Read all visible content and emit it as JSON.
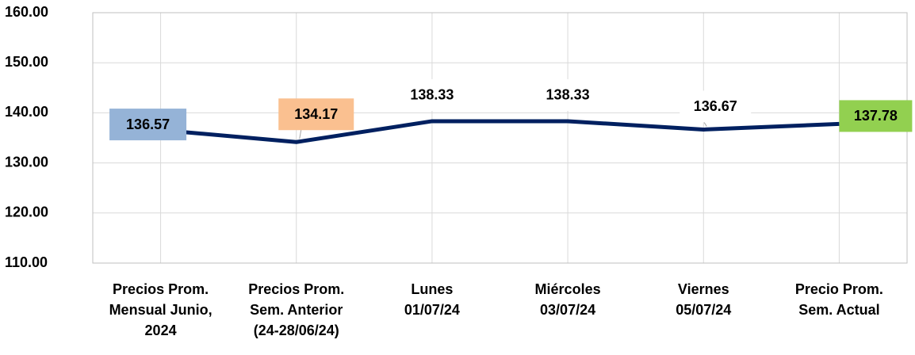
{
  "chart_data": {
    "type": "line",
    "categories": [
      "Precios Prom.\nMensual Junio,\n2024",
      "Precios Prom.\nSem. Anterior\n(24-28/06/24)",
      "Lunes\n01/07/24",
      "Miércoles\n03/07/24",
      "Viernes\n05/07/24",
      "Precio Prom.\nSem. Actual"
    ],
    "series": [
      {
        "color": "#002060",
        "values": [
          136.57,
          134.17,
          138.33,
          138.33,
          136.67,
          137.78
        ]
      }
    ],
    "label_backgrounds": [
      "#95b3d7",
      "#fac090",
      "#ffffff",
      "#ffffff",
      "#ffffff",
      "#92d050"
    ],
    "ylim": [
      110,
      160
    ],
    "yticks": [
      {
        "value": 110,
        "label": "110.00"
      },
      {
        "value": 120,
        "label": "120.00"
      },
      {
        "value": 130,
        "label": "130.00"
      },
      {
        "value": 140,
        "label": "140.00"
      },
      {
        "value": 150,
        "label": "150.00"
      },
      {
        "value": 160,
        "label": "160.00"
      }
    ],
    "grid": true
  }
}
